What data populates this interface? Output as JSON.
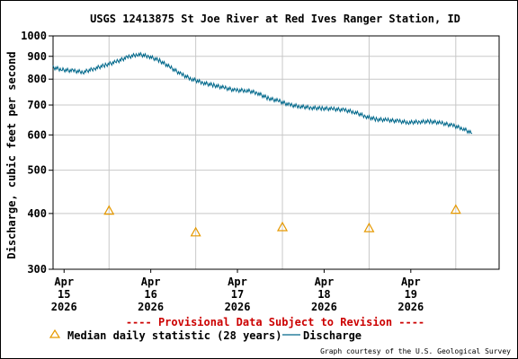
{
  "chart_data": {
    "type": "line",
    "title": "USGS 12413875 St Joe River at Red Ives Ranger Station, ID",
    "ylabel": "Discharge, cubic feet per second",
    "xlabel": "",
    "y_scale": "log",
    "ylim": [
      300,
      1000
    ],
    "y_ticks": [
      300,
      400,
      500,
      600,
      700,
      800,
      900,
      1000
    ],
    "y_tick_labels": [
      "300",
      "400",
      "500",
      "600",
      "700",
      "800",
      "900",
      "1000"
    ],
    "xlim": [
      "2026-04-14 08:30",
      "2026-04-19 12:00"
    ],
    "x_ticks": [
      {
        "value": "2026-04-15 00:00",
        "lines": [
          "Apr",
          "15",
          "2026"
        ]
      },
      {
        "value": "2026-04-16 00:00",
        "lines": [
          "Apr",
          "16",
          "2026"
        ]
      },
      {
        "value": "2026-04-17 00:00",
        "lines": [
          "Apr",
          "17",
          "2026"
        ]
      },
      {
        "value": "2026-04-18 00:00",
        "lines": [
          "Apr",
          "18",
          "2026"
        ]
      },
      {
        "value": "2026-04-19 00:00",
        "lines": [
          "Apr",
          "19",
          "2026"
        ]
      }
    ],
    "grid": true,
    "series": [
      {
        "name": "Discharge",
        "style": "line",
        "color": "#00688b",
        "x": [
          "2026-04-14 08:30",
          "2026-04-14 11:00",
          "2026-04-14 14:00",
          "2026-04-14 17:00",
          "2026-04-14 20:00",
          "2026-04-14 23:00",
          "2026-04-15 02:00",
          "2026-04-15 05:00",
          "2026-04-15 08:00",
          "2026-04-15 11:00",
          "2026-04-15 14:00",
          "2026-04-15 17:00",
          "2026-04-15 20:00",
          "2026-04-15 23:00",
          "2026-04-16 02:00",
          "2026-04-16 05:00",
          "2026-04-16 08:00",
          "2026-04-16 11:00",
          "2026-04-16 14:00",
          "2026-04-16 17:00",
          "2026-04-16 20:00",
          "2026-04-16 23:00",
          "2026-04-17 02:00",
          "2026-04-17 05:00",
          "2026-04-17 08:00",
          "2026-04-17 11:00",
          "2026-04-17 14:00",
          "2026-04-17 17:00",
          "2026-04-17 20:00",
          "2026-04-17 23:00",
          "2026-04-18 02:00",
          "2026-04-18 05:00",
          "2026-04-18 08:00",
          "2026-04-18 11:00",
          "2026-04-18 14:00",
          "2026-04-18 17:00",
          "2026-04-18 20:00",
          "2026-04-18 23:00",
          "2026-04-19 02:00",
          "2026-04-19 04:30"
        ],
        "y": [
          850,
          840,
          835,
          830,
          845,
          860,
          875,
          895,
          910,
          900,
          880,
          850,
          820,
          800,
          785,
          775,
          765,
          755,
          755,
          745,
          725,
          715,
          700,
          695,
          690,
          688,
          686,
          682,
          675,
          660,
          650,
          648,
          644,
          640,
          642,
          643,
          638,
          630,
          620,
          604
        ]
      },
      {
        "name": "Median daily statistic (28 years)",
        "style": "marker",
        "marker": "triangle",
        "color": "#e69900",
        "x": [
          "2026-04-15 00:00",
          "2026-04-16 00:00",
          "2026-04-17 00:00",
          "2026-04-18 00:00",
          "2026-04-19 00:00"
        ],
        "y": [
          406,
          363,
          373,
          371,
          408
        ]
      }
    ],
    "provisional_note": "---- Provisional Data Subject to Revision ----",
    "provisional_color": "#cc0000",
    "legend": {
      "placement": "bottom",
      "items": [
        {
          "label": "Median daily statistic (28 years)",
          "symbol": "triangle",
          "color": "#e69900"
        },
        {
          "label": "Discharge",
          "symbol": "line",
          "color": "#00688b"
        }
      ]
    },
    "credit": "Graph courtesy of the U.S. Geological Survey",
    "colors": {
      "grid": "#c8c8c8",
      "axis": "#000000",
      "background": "#ffffff"
    }
  }
}
